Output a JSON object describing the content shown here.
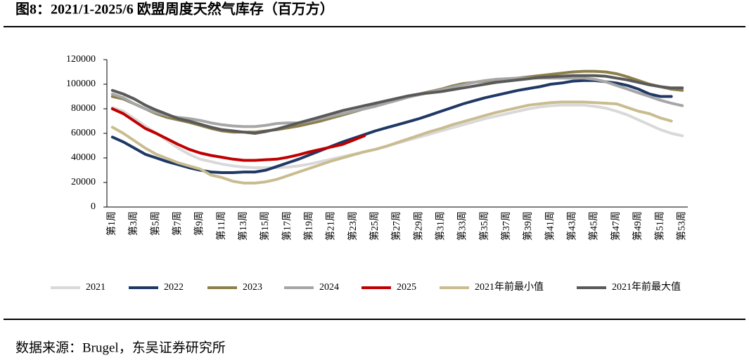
{
  "chart_data": {
    "type": "line",
    "title": "图8：2021/1-2025/6 欧盟周度天然气库存（百万方）",
    "source": "数据来源：Brugel，东吴证券研究所",
    "categories": [
      "第1周",
      null,
      "第3周",
      null,
      "第5周",
      null,
      "第7周",
      null,
      "第9周",
      null,
      "第11周",
      null,
      "第13周",
      null,
      "第15周",
      null,
      "第17周",
      null,
      "第19周",
      null,
      "第21周",
      null,
      "第23周",
      null,
      "第25周",
      null,
      "第27周",
      null,
      "第29周",
      null,
      "第31周",
      null,
      "第33周",
      null,
      "第35周",
      null,
      "第37周",
      null,
      "第39周",
      null,
      "第41周",
      null,
      "第43周",
      null,
      "第45周",
      null,
      "第47周",
      null,
      "第49周",
      null,
      "第51周",
      null,
      "第53周"
    ],
    "ylim": [
      0,
      120000
    ],
    "yticks": [
      0,
      20000,
      40000,
      60000,
      80000,
      100000,
      120000
    ],
    "legend": "bottom",
    "series": [
      {
        "name": "2021",
        "color": "#d9d9d9",
        "values": [
          81000,
          78000,
          72000,
          66000,
          60000,
          54000,
          48000,
          43000,
          39000,
          37000,
          35000,
          33500,
          32500,
          32000,
          32000,
          32000,
          32500,
          33500,
          35000,
          37000,
          39000,
          41000,
          43000,
          45000,
          47000,
          49500,
          52000,
          54500,
          57000,
          59500,
          62000,
          64500,
          67000,
          69500,
          72000,
          74000,
          76000,
          78000,
          80000,
          81500,
          82500,
          83000,
          83000,
          83000,
          82000,
          80500,
          78000,
          75000,
          71000,
          67000,
          63000,
          60000,
          58000
        ]
      },
      {
        "name": "2022",
        "color": "#1f3864",
        "values": [
          57000,
          53000,
          48000,
          43000,
          40000,
          37000,
          34500,
          32000,
          30000,
          28500,
          28000,
          28000,
          28500,
          28500,
          30000,
          33000,
          36000,
          39000,
          42500,
          46000,
          49500,
          53000,
          56000,
          59000,
          62000,
          64500,
          67000,
          69500,
          72000,
          75000,
          78000,
          81000,
          84000,
          86500,
          89000,
          91000,
          93000,
          95000,
          96500,
          98000,
          100000,
          101000,
          102500,
          103000,
          103000,
          102000,
          101000,
          99000,
          96000,
          92000,
          90000,
          90000,
          null
        ]
      },
      {
        "name": "2023",
        "color": "#8c7f4a",
        "values": [
          90000,
          88000,
          84000,
          80000,
          76000,
          73000,
          71000,
          69000,
          66500,
          64000,
          62000,
          61000,
          61000,
          61000,
          62000,
          63000,
          64500,
          66000,
          68000,
          70000,
          72500,
          75000,
          77500,
          80000,
          82500,
          85000,
          87500,
          90000,
          92000,
          94000,
          96000,
          98500,
          100500,
          101500,
          102500,
          103500,
          104000,
          105000,
          106000,
          107000,
          108000,
          109000,
          110000,
          110500,
          110500,
          110000,
          108500,
          106000,
          103000,
          100000,
          98000,
          96000,
          95000
        ]
      },
      {
        "name": "2024",
        "color": "#a6a6a6",
        "values": [
          92000,
          89000,
          84000,
          80000,
          77000,
          74500,
          73000,
          72000,
          70500,
          68500,
          67000,
          66000,
          65500,
          65500,
          66500,
          68000,
          68500,
          68500,
          70000,
          72000,
          74000,
          76000,
          78000,
          80000,
          82000,
          84500,
          87000,
          89500,
          91500,
          93500,
          95500,
          97500,
          99500,
          101500,
          103000,
          104000,
          104500,
          105000,
          105000,
          105000,
          105000,
          105000,
          105000,
          105000,
          104000,
          102000,
          99000,
          96000,
          93000,
          90000,
          87000,
          84500,
          82500
        ]
      },
      {
        "name": "2025",
        "color": "#c00000",
        "values": [
          80000,
          76000,
          70000,
          64000,
          60000,
          55500,
          51000,
          47000,
          44000,
          42000,
          40500,
          39000,
          38000,
          38000,
          38500,
          39000,
          40500,
          42500,
          45000,
          47000,
          49000,
          51000,
          54500,
          58000,
          null,
          null,
          null,
          null,
          null,
          null,
          null,
          null,
          null,
          null,
          null,
          null,
          null,
          null,
          null,
          null,
          null,
          null,
          null,
          null,
          null,
          null,
          null,
          null,
          null,
          null,
          null,
          null,
          null
        ]
      },
      {
        "name": "2021年前最小值",
        "color": "#c9bc8f",
        "values": [
          65000,
          60000,
          54000,
          48000,
          43000,
          39500,
          36000,
          33500,
          31000,
          26000,
          24000,
          21000,
          19500,
          19500,
          20500,
          22500,
          25500,
          28500,
          31500,
          34500,
          37500,
          40000,
          42500,
          45000,
          47000,
          49500,
          52500,
          55500,
          58500,
          61500,
          64000,
          67000,
          69500,
          72000,
          74500,
          77000,
          79000,
          81000,
          83000,
          84000,
          85000,
          85500,
          85500,
          85500,
          85000,
          84500,
          84000,
          81000,
          78000,
          76000,
          72500,
          70000,
          null
        ]
      },
      {
        "name": "2021年前最大值",
        "color": "#595959",
        "values": [
          95000,
          92000,
          88000,
          83000,
          79000,
          75500,
          72000,
          70000,
          67500,
          65000,
          63000,
          62000,
          61000,
          60000,
          61500,
          63500,
          66000,
          68500,
          71000,
          73500,
          76000,
          78500,
          80500,
          82500,
          84500,
          86500,
          88500,
          90500,
          92000,
          93000,
          94000,
          95500,
          97000,
          98500,
          100000,
          101500,
          102500,
          103500,
          104500,
          105500,
          106000,
          106500,
          107000,
          107000,
          107000,
          106500,
          105000,
          103500,
          101500,
          99500,
          98000,
          97000,
          97000
        ]
      }
    ]
  }
}
